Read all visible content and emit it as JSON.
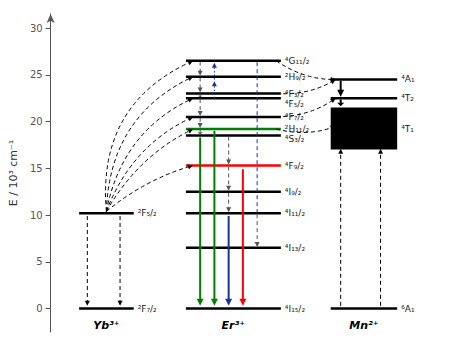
{
  "chart_data": {
    "type": "level",
    "ylabel": "E / 10³ cm⁻¹",
    "ylim": [
      -2.5,
      31.5
    ],
    "yticks": [
      0,
      5,
      10,
      15,
      20,
      25,
      30
    ],
    "tick_labels": "y",
    "grid": false,
    "series": [
      {
        "name": "Yb³⁺",
        "color": "black",
        "levels": [
          0,
          10.2
        ],
        "labels": [
          "²F₇/₂",
          "²F₅/₂"
        ],
        "arrows": [
          {
            "from": 9.9,
            "to": 0.3,
            "color": "black",
            "line_style": "dashed",
            "marker": "arrow"
          },
          {
            "from": 9.9,
            "to": 0.3,
            "color": "black",
            "line_style": "dashed",
            "marker": "arrow"
          }
        ],
        "transfers": [
          {
            "from": 10.4,
            "to": 26.5
          },
          {
            "from": 10.4,
            "to": 24.8
          },
          {
            "from": 10.4,
            "to": 22.5
          },
          {
            "from": 10.4,
            "to": 20.5
          },
          {
            "from": 10.4,
            "to": 19.2
          },
          {
            "from": 10.4,
            "to": 15.3
          }
        ]
      },
      {
        "name": "Er³⁺",
        "color": "black",
        "levels": [
          0,
          6.5,
          10.2,
          12.5,
          15.3,
          18.5,
          19.2,
          20.5,
          22.5,
          23.0,
          24.8,
          26.5
        ],
        "labels": [
          "⁴I₁₅/₂",
          "⁴I₁₃/₂",
          "⁴I₁₁/₂",
          "⁴I₉/₂",
          "⁴F₉/₂",
          "⁴S₃/₂",
          "²H₁₁/₂",
          "⁴F₇/₂",
          "⁴F₅/₂",
          "⁴F₃/₂",
          "²H₉/₂",
          "⁴G₁₁/₂"
        ],
        "colors": [
          "black",
          "black",
          "black",
          "black",
          "red",
          "black",
          "green",
          "black",
          "black",
          "black",
          "black",
          "black"
        ],
        "arrows": [
          {
            "from": 18.3,
            "to": 0.3,
            "color": "green",
            "line_style": "solid",
            "marker": "arrow"
          },
          {
            "from": 19.0,
            "to": 0.3,
            "color": "green",
            "line_style": "solid",
            "marker": "arrow"
          },
          {
            "from": 9.9,
            "to": 0.3,
            "color": "#1a3399",
            "line_style": "solid",
            "marker": "arrow"
          },
          {
            "from": 14.9,
            "to": 0.3,
            "color": "red",
            "line_style": "solid",
            "marker": "arrow"
          },
          {
            "from": 26.4,
            "to": 24.9,
            "color": "#555555",
            "line_style": "dashed",
            "marker": "arrow"
          },
          {
            "from": 24.7,
            "to": 23.1,
            "color": "#555555",
            "line_style": "dashed",
            "marker": "arrow"
          },
          {
            "from": 22.9,
            "to": 22.6,
            "color": "#555555",
            "line_style": "dashed",
            "marker": "arrow"
          },
          {
            "from": 22.4,
            "to": 20.6,
            "color": "#555555",
            "line_style": "dashed",
            "marker": "arrow"
          },
          {
            "from": 20.4,
            "to": 19.3,
            "color": "#555555",
            "line_style": "dashed",
            "marker": "arrow"
          },
          {
            "from": 19.1,
            "to": 18.6,
            "color": "#555555",
            "line_style": "dashed",
            "marker": "arrow"
          },
          {
            "from": 18.4,
            "to": 15.4,
            "color": "#555555",
            "line_style": "dashed",
            "marker": "arrow"
          },
          {
            "from": 15.2,
            "to": 12.6,
            "color": "#555555",
            "line_style": "dashed",
            "marker": "arrow"
          },
          {
            "from": 12.4,
            "to": 10.3,
            "color": "#555555",
            "line_style": "dashed",
            "marker": "arrow"
          },
          {
            "from": 10.1,
            "to": 6.6,
            "color": "#555555",
            "line_style": "dashed",
            "marker": "arrow"
          },
          {
            "from": 24.5,
            "to": 26.3,
            "color": "#1a3399",
            "line_style": "dotted",
            "marker": "arrow"
          },
          {
            "from": 22.5,
            "to": 24.3,
            "color": "#1a3399",
            "line_style": "dotted",
            "marker": "arrow"
          },
          {
            "from": 10.2,
            "to": 26.5,
            "color": "#1a3399",
            "line_style": "dashed",
            "marker": "none"
          }
        ],
        "transfers": [
          {
            "from": 19.2,
            "to": 19.5
          },
          {
            "from": 26.5,
            "to": 24.5
          },
          {
            "from": 20.5,
            "to": 22.5
          },
          {
            "from": 23.0,
            "to": 24.5
          }
        ]
      },
      {
        "name": "Mn²⁺",
        "color": "black",
        "levels": [
          0,
          22.5,
          24.5
        ],
        "labels": [
          "⁶A₁",
          "⁴T₂",
          "⁴A₁"
        ],
        "band": [
          17.0,
          21.5
        ],
        "band_label": "⁴T₁",
        "arrows": [
          {
            "from": 0.3,
            "to": 17.1,
            "color": "black",
            "line_style": "dashed",
            "marker": "arrow"
          },
          {
            "from": 0.3,
            "to": 17.1,
            "color": "black",
            "line_style": "dashed",
            "marker": "arrow"
          },
          {
            "from": 24.35,
            "to": 22.65,
            "color": "black",
            "line_style": "solid",
            "marker": "arrow"
          },
          {
            "from": 22.35,
            "to": 21.65,
            "color": "black",
            "line_style": "solid",
            "marker": "arrow"
          }
        ]
      }
    ]
  }
}
